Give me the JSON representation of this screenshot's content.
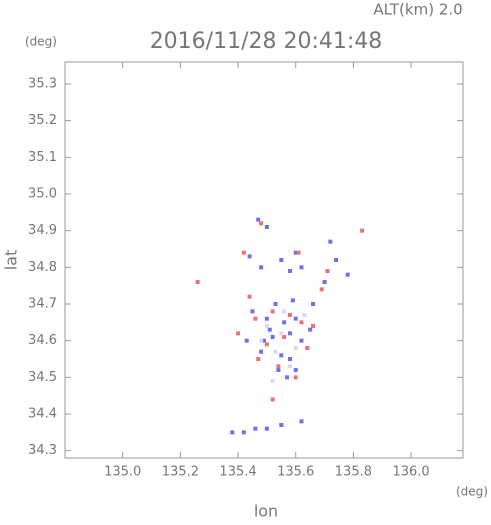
{
  "chart_data": {
    "type": "scatter",
    "title": "2016/11/28 20:41:48",
    "subtitle": "ALT(km) 2.0",
    "x_label": "lon",
    "y_label": "lat",
    "x_unit": "(deg)",
    "y_unit": "(deg)",
    "xlim": [
      134.8,
      136.18
    ],
    "ylim": [
      34.28,
      35.36
    ],
    "xticks": [
      {
        "value": 135,
        "label": "135.0"
      },
      135.2,
      135.4,
      135.6,
      135.8,
      {
        "value": 136,
        "label": "136.0"
      }
    ],
    "yticks": [
      34.3,
      34.4,
      34.5,
      34.6,
      34.7,
      34.8,
      34.9,
      {
        "value": 35,
        "label": "35.0"
      },
      35.1,
      35.2,
      35.3
    ],
    "series": [
      {
        "color": "#6f6ff0",
        "x": [
          135.47,
          135.5,
          135.44,
          135.48,
          135.55,
          135.58,
          135.62,
          135.6,
          135.72,
          135.74,
          135.78,
          135.7,
          135.45,
          135.5,
          135.53,
          135.56,
          135.58,
          135.6,
          135.62,
          135.52,
          135.48,
          135.55,
          135.58,
          135.54,
          135.57,
          135.6,
          135.65,
          135.43,
          135.38,
          135.42,
          135.46,
          135.5,
          135.55,
          135.62,
          135.66,
          135.59,
          135.51,
          135.49
        ],
        "values": [
          34.93,
          34.91,
          34.83,
          34.8,
          34.82,
          34.79,
          34.8,
          34.84,
          34.87,
          34.82,
          34.78,
          34.76,
          34.68,
          34.66,
          34.7,
          34.65,
          34.62,
          34.66,
          34.6,
          34.61,
          34.57,
          34.56,
          34.55,
          34.52,
          34.5,
          34.52,
          34.63,
          34.6,
          34.35,
          34.35,
          34.36,
          34.36,
          34.37,
          34.38,
          34.7,
          34.71,
          34.63,
          34.6
        ]
      },
      {
        "color": "#f07070",
        "x": [
          135.48,
          135.42,
          135.61,
          135.83,
          135.69,
          135.71,
          135.44,
          135.46,
          135.52,
          135.58,
          135.62,
          135.56,
          135.5,
          135.54,
          135.6,
          135.52,
          135.26,
          135.4,
          135.47,
          135.64,
          135.66
        ],
        "values": [
          34.92,
          34.84,
          34.84,
          34.9,
          34.74,
          34.79,
          34.72,
          34.66,
          34.68,
          34.67,
          34.65,
          34.61,
          34.59,
          34.53,
          34.5,
          34.44,
          34.76,
          34.62,
          34.55,
          34.58,
          34.64
        ]
      },
      {
        "color": "#d8d8f4",
        "x": [
          135.5,
          135.55,
          135.6,
          135.58,
          135.53,
          135.56,
          135.63,
          135.48,
          135.52
        ],
        "values": [
          34.64,
          34.62,
          34.58,
          34.53,
          34.57,
          34.68,
          34.67,
          34.6,
          34.49
        ]
      }
    ]
  }
}
